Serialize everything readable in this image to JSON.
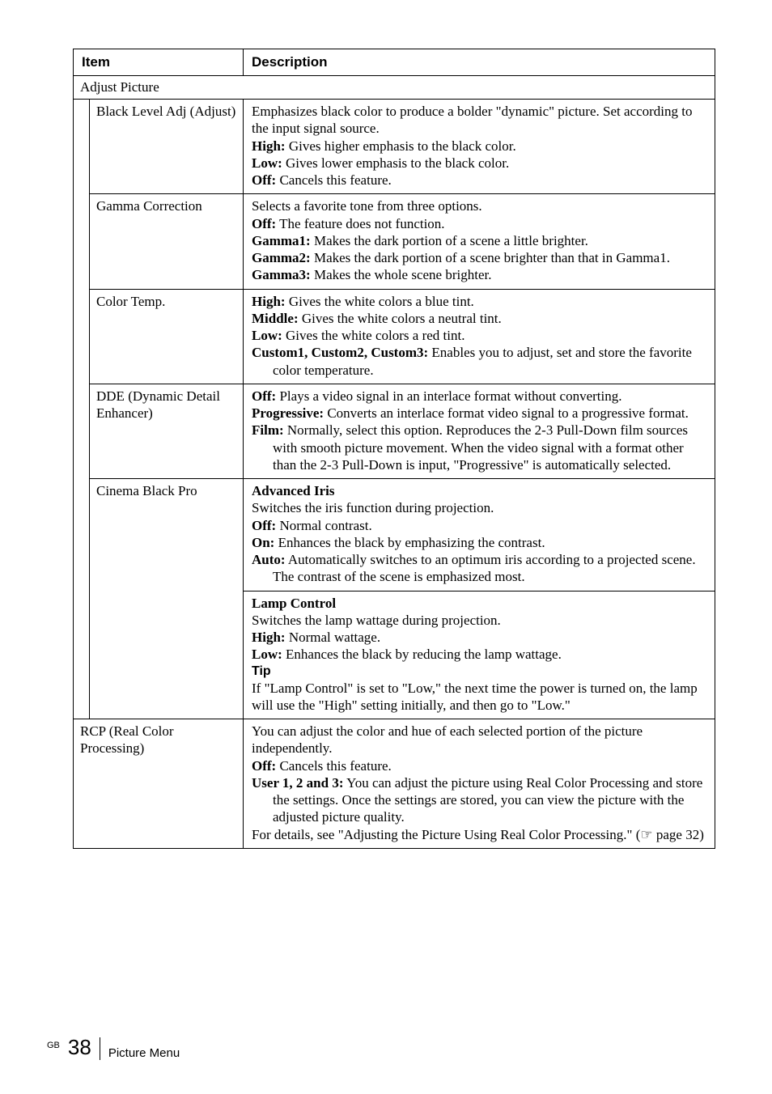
{
  "header": {
    "item": "Item",
    "description": "Description"
  },
  "section": {
    "title": "Adjust Picture"
  },
  "rows": {
    "blackLevel": {
      "item": "Black Level Adj (Adjust)",
      "desc": [
        "Emphasizes black color to produce a bolder \"dynamic\" picture. Set according to the input signal source.",
        {
          "b": "High:",
          "t": " Gives higher emphasis to the black color."
        },
        {
          "b": "Low:",
          "t": " Gives lower emphasis to the black color."
        },
        {
          "b": "Off:",
          "t": " Cancels this feature."
        }
      ]
    },
    "gamma": {
      "item": "Gamma Correction",
      "desc": [
        "Selects a favorite tone from three options.",
        {
          "b": "Off:",
          "t": " The feature does not function."
        },
        {
          "b": "Gamma1:",
          "t": " Makes the dark portion of a scene a little brighter."
        },
        {
          "b": "Gamma2:",
          "t": " Makes the dark portion of a scene brighter than that in Gamma1."
        },
        {
          "b": "Gamma3:",
          "t": " Makes the whole scene brighter."
        }
      ]
    },
    "colorTemp": {
      "item": "Color Temp.",
      "desc": [
        {
          "b": "High:",
          "t": " Gives the white colors a blue tint."
        },
        {
          "b": "Middle:",
          "t": " Gives the white colors a neutral tint."
        },
        {
          "b": "Low:",
          "t": " Gives the white colors a red tint."
        },
        {
          "b": "Custom1, Custom2, Custom3:",
          "t": " Enables you to adjust, set and store the favorite color temperature."
        }
      ]
    },
    "dde": {
      "item": "DDE (Dynamic Detail Enhancer)",
      "desc": [
        {
          "b": "Off:",
          "t": " Plays a video signal in an interlace format without converting."
        },
        {
          "b": "Progressive:",
          "t": " Converts an interlace format video signal to a progressive format."
        },
        {
          "b": "Film:",
          "t": " Normally, select this option. Reproduces the 2-3 Pull-Down film sources with smooth picture movement. When the video signal with a format other than the 2-3 Pull-Down is input, \"Progressive\" is automatically selected."
        }
      ]
    },
    "cinema1": {
      "item": "Cinema Black Pro",
      "desc": [
        {
          "b": "Advanced Iris"
        },
        "Switches the iris function during projection.",
        {
          "b": "Off:",
          "t": " Normal contrast."
        },
        {
          "b": "On:",
          "t": " Enhances the black by emphasizing the contrast."
        },
        {
          "b": "Auto:",
          "t": " Automatically switches to an optimum iris according to a projected scene. The contrast of the scene is emphasized most."
        }
      ]
    },
    "cinema2": {
      "desc": [
        {
          "b": "Lamp Control"
        },
        "Switches the lamp wattage during projection.",
        {
          "b": "High:",
          "t": " Normal wattage."
        },
        {
          "b": "Low:",
          "t": " Enhances the black by reducing the lamp wattage."
        }
      ],
      "tipLabel": "Tip",
      "tip": "If \"Lamp Control\" is set to \"Low,\" the next time the power is turned on, the lamp will use the \"High\" setting initially, and then go to \"Low.\""
    },
    "rcp": {
      "item": "RCP (Real Color Processing)",
      "desc": [
        "You can adjust the color and hue of each selected portion of the picture independently.",
        {
          "b": "Off:",
          "t": " Cancels this feature."
        },
        {
          "b": "User 1, 2 and 3:",
          "t": " You can adjust the picture using Real Color Processing and store the settings. Once the settings are stored, you can view the picture with the adjusted picture quality."
        },
        "For details, see \"Adjusting the Picture Using Real Color Processing.\" (☞ page 32)"
      ]
    }
  },
  "footer": {
    "gb": "GB",
    "page": "38",
    "section": "Picture Menu"
  }
}
